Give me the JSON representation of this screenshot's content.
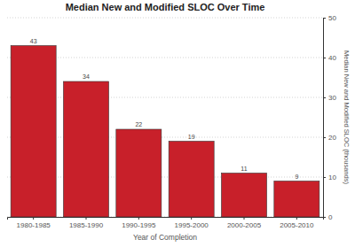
{
  "chart_data": {
    "type": "bar",
    "title": "Median New and Modified SLOC Over Time",
    "x_label": "Year of Completion",
    "y_label": "Median New and Modified SLOC (thousands)",
    "categories": [
      "1980-1985",
      "1985-1990",
      "1990-1995",
      "1995-2000",
      "2000-2005",
      "2005-2010"
    ],
    "values": [
      43,
      34,
      22,
      19,
      11,
      9
    ],
    "color": "#c8202a",
    "ylim": [
      0,
      50
    ],
    "yticks": [
      0,
      10,
      20,
      30,
      40,
      50
    ],
    "grid": true,
    "data_labels": true
  }
}
